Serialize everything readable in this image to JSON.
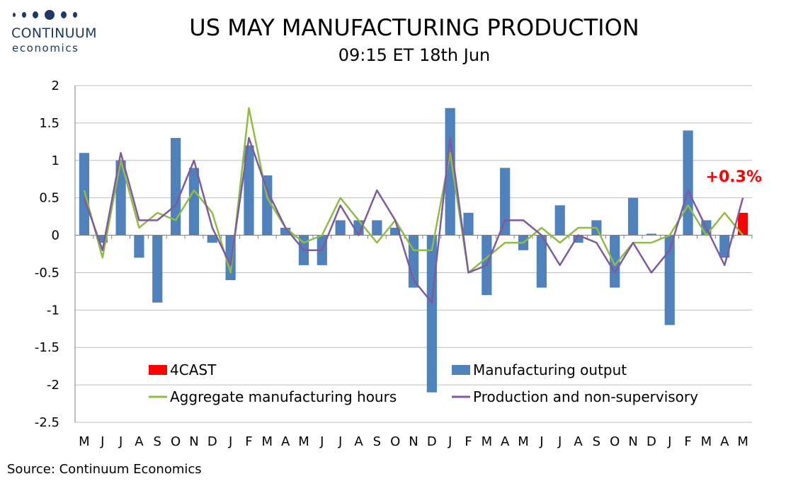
{
  "logo": {
    "name": "CONTINUUM",
    "subname": "economics"
  },
  "source": "Source: Continuum Economics",
  "chart_data": {
    "type": "bar",
    "title": "US MAY MANUFACTURING PRODUCTION",
    "subtitle": "09:15 ET 18th Jun",
    "categories": [
      "M",
      "J",
      "J",
      "A",
      "S",
      "O",
      "N",
      "D",
      "J",
      "F",
      "M",
      "A",
      "M",
      "J",
      "J",
      "A",
      "S",
      "O",
      "N",
      "D",
      "J",
      "F",
      "M",
      "A",
      "M",
      "J",
      "J",
      "A",
      "S",
      "O",
      "N",
      "D",
      "J",
      "F",
      "M",
      "A",
      "M"
    ],
    "ylim": [
      -2.5,
      2
    ],
    "yticks": [
      2,
      1.5,
      1,
      0.5,
      0,
      -0.5,
      -1,
      -1.5,
      -2,
      -2.5
    ],
    "grid": true,
    "legend_position": "bottom-inside",
    "annotation": "+0.3%",
    "series": [
      {
        "name": "Manufacturing output",
        "type": "bar",
        "color": "#4f81bd",
        "values": [
          1.1,
          -0.1,
          1.0,
          -0.3,
          -0.9,
          1.3,
          0.9,
          -0.1,
          -0.6,
          1.2,
          0.8,
          0.1,
          -0.4,
          -0.4,
          0.2,
          0.2,
          0.2,
          0.1,
          -0.7,
          -2.1,
          1.7,
          0.3,
          -0.8,
          0.9,
          -0.2,
          -0.7,
          0.4,
          -0.1,
          0.2,
          -0.7,
          0.5,
          0.02,
          -1.2,
          1.4,
          0.2,
          -0.3,
          null
        ]
      },
      {
        "name": "4CAST",
        "type": "bar",
        "color": "#ff0000",
        "values": [
          null,
          null,
          null,
          null,
          null,
          null,
          null,
          null,
          null,
          null,
          null,
          null,
          null,
          null,
          null,
          null,
          null,
          null,
          null,
          null,
          null,
          null,
          null,
          null,
          null,
          null,
          null,
          null,
          null,
          null,
          null,
          null,
          null,
          null,
          null,
          null,
          0.3
        ]
      },
      {
        "name": "Aggregate manufacturing hours",
        "type": "line",
        "color": "#8fbc45",
        "values": [
          0.6,
          -0.3,
          1.0,
          0.1,
          0.3,
          0.2,
          0.6,
          0.3,
          -0.5,
          1.7,
          0.5,
          0.1,
          -0.1,
          0.0,
          0.5,
          0.2,
          -0.1,
          0.2,
          -0.2,
          -0.2,
          1.1,
          -0.5,
          -0.3,
          -0.1,
          -0.1,
          0.1,
          -0.1,
          0.1,
          0.1,
          -0.4,
          -0.1,
          -0.1,
          0.0,
          0.4,
          0.0,
          0.3,
          0.0
        ]
      },
      {
        "name": "Production and non-supervisory",
        "type": "line",
        "color": "#7e5b9e",
        "values": [
          0.5,
          -0.2,
          1.1,
          0.2,
          0.2,
          0.4,
          1.0,
          0.1,
          -0.4,
          1.3,
          0.6,
          0.1,
          -0.2,
          -0.2,
          0.4,
          0.0,
          0.6,
          0.2,
          -0.6,
          -0.9,
          1.3,
          -0.5,
          -0.4,
          0.2,
          0.2,
          0.0,
          -0.4,
          0.0,
          -0.1,
          -0.5,
          -0.1,
          -0.5,
          -0.2,
          0.6,
          0.1,
          -0.4,
          0.5
        ]
      }
    ]
  }
}
